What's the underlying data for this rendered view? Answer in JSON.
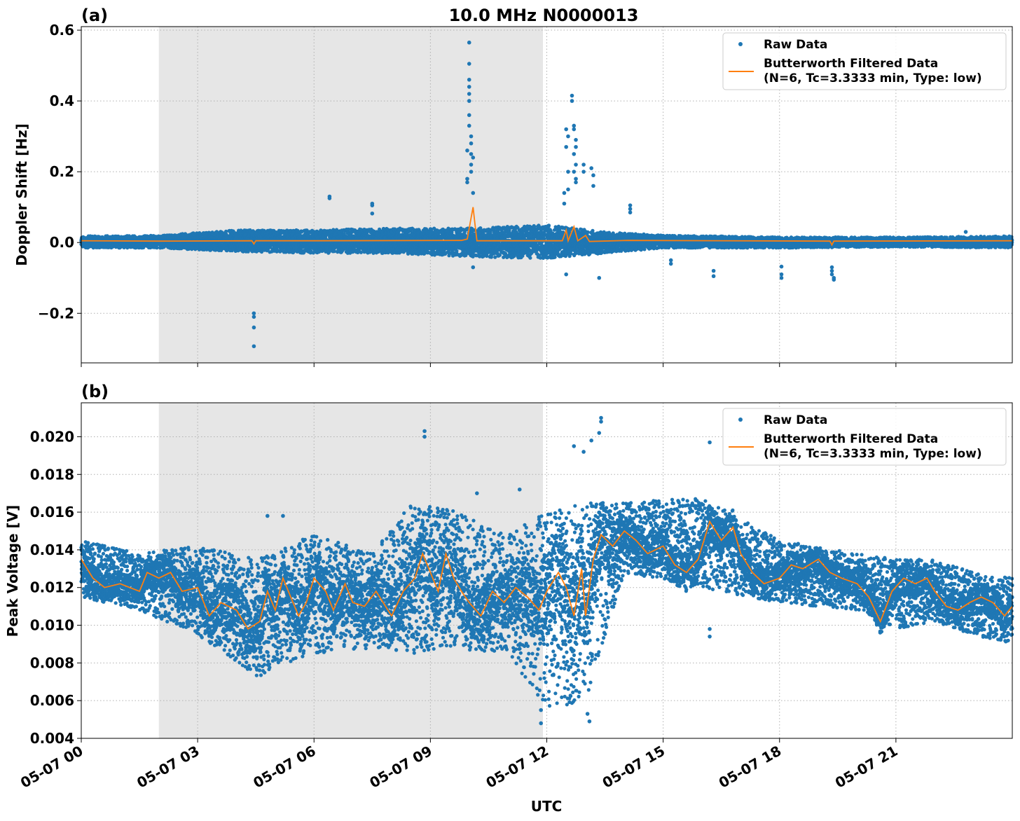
{
  "figure": {
    "title": "10.0 MHz N0000013",
    "xlabel": "UTC",
    "xticks": [
      "05-07 00",
      "05-07 03",
      "05-07 06",
      "05-07 09",
      "05-07 12",
      "05-07 15",
      "05-07 18",
      "05-07 21"
    ]
  },
  "chart_data": [
    {
      "type": "scatter",
      "panel_label": "(a)",
      "ylabel": "Doppler Shift [Hz]",
      "xlim_hours": [
        0,
        24
      ],
      "ylim": [
        -0.34,
        0.61
      ],
      "yticks": [
        -0.2,
        0.0,
        0.2,
        0.4,
        0.6
      ],
      "ytick_labels": [
        "−0.2",
        "0.0",
        "0.2",
        "0.4",
        "0.6"
      ],
      "shaded_interval_hours": [
        2.0,
        11.9
      ],
      "grid": true,
      "legend_position": "upper right",
      "series": [
        {
          "name": "Raw Data",
          "style": "markers",
          "color": "#1f77b4"
        },
        {
          "name": "Butterworth Filtered Data\n(N=6, Tc=3.3333 min, Type: low)",
          "style": "line",
          "color": "#ff7f0e"
        }
      ],
      "baseline_band": [
        {
          "x": 0,
          "lo": -0.015,
          "hi": 0.018
        },
        {
          "x": 2,
          "lo": -0.015,
          "hi": 0.02
        },
        {
          "x": 4,
          "lo": -0.025,
          "hi": 0.035
        },
        {
          "x": 6,
          "lo": -0.03,
          "hi": 0.035
        },
        {
          "x": 8,
          "lo": -0.03,
          "hi": 0.04
        },
        {
          "x": 10,
          "lo": -0.04,
          "hi": 0.04
        },
        {
          "x": 12,
          "lo": -0.045,
          "hi": 0.05
        },
        {
          "x": 13.5,
          "lo": -0.03,
          "hi": 0.03
        },
        {
          "x": 15,
          "lo": -0.015,
          "hi": 0.02
        },
        {
          "x": 18,
          "lo": -0.015,
          "hi": 0.015
        },
        {
          "x": 21,
          "lo": -0.012,
          "hi": 0.015
        },
        {
          "x": 24,
          "lo": -0.015,
          "hi": 0.018
        }
      ],
      "outliers": [
        {
          "x": 4.45,
          "y": -0.2
        },
        {
          "x": 4.45,
          "y": -0.21
        },
        {
          "x": 4.45,
          "y": -0.24
        },
        {
          "x": 4.45,
          "y": -0.293
        },
        {
          "x": 6.4,
          "y": 0.13
        },
        {
          "x": 6.4,
          "y": 0.125
        },
        {
          "x": 7.5,
          "y": 0.11
        },
        {
          "x": 7.5,
          "y": 0.105
        },
        {
          "x": 7.5,
          "y": 0.082
        },
        {
          "x": 10.0,
          "y": 0.565
        },
        {
          "x": 10.0,
          "y": 0.505
        },
        {
          "x": 10.0,
          "y": 0.46
        },
        {
          "x": 10.0,
          "y": 0.44
        },
        {
          "x": 10.0,
          "y": 0.42
        },
        {
          "x": 10.0,
          "y": 0.4
        },
        {
          "x": 10.0,
          "y": 0.36
        },
        {
          "x": 10.0,
          "y": 0.33
        },
        {
          "x": 10.05,
          "y": 0.3
        },
        {
          "x": 10.05,
          "y": 0.28
        },
        {
          "x": 10.05,
          "y": 0.25
        },
        {
          "x": 10.05,
          "y": 0.22
        },
        {
          "x": 10.05,
          "y": 0.2
        },
        {
          "x": 9.95,
          "y": 0.18
        },
        {
          "x": 9.95,
          "y": 0.17
        },
        {
          "x": 9.95,
          "y": 0.26
        },
        {
          "x": 10.1,
          "y": 0.24
        },
        {
          "x": 10.1,
          "y": 0.14
        },
        {
          "x": 10.1,
          "y": -0.07
        },
        {
          "x": 12.65,
          "y": 0.415
        },
        {
          "x": 12.65,
          "y": 0.4
        },
        {
          "x": 12.7,
          "y": 0.33
        },
        {
          "x": 12.7,
          "y": 0.32
        },
        {
          "x": 12.75,
          "y": 0.29
        },
        {
          "x": 12.75,
          "y": 0.27
        },
        {
          "x": 12.7,
          "y": 0.25
        },
        {
          "x": 12.75,
          "y": 0.22
        },
        {
          "x": 12.7,
          "y": 0.2
        },
        {
          "x": 12.75,
          "y": 0.18
        },
        {
          "x": 12.75,
          "y": 0.17
        },
        {
          "x": 12.5,
          "y": 0.32
        },
        {
          "x": 12.55,
          "y": 0.3
        },
        {
          "x": 12.5,
          "y": 0.27
        },
        {
          "x": 12.55,
          "y": 0.2
        },
        {
          "x": 12.55,
          "y": 0.15
        },
        {
          "x": 12.45,
          "y": 0.14
        },
        {
          "x": 12.45,
          "y": 0.11
        },
        {
          "x": 12.95,
          "y": 0.22
        },
        {
          "x": 12.95,
          "y": 0.2
        },
        {
          "x": 13.15,
          "y": 0.21
        },
        {
          "x": 13.2,
          "y": 0.19
        },
        {
          "x": 13.2,
          "y": 0.16
        },
        {
          "x": 12.5,
          "y": -0.09
        },
        {
          "x": 13.35,
          "y": -0.1
        },
        {
          "x": 14.15,
          "y": 0.105
        },
        {
          "x": 14.15,
          "y": 0.095
        },
        {
          "x": 14.15,
          "y": 0.085
        },
        {
          "x": 15.2,
          "y": -0.05
        },
        {
          "x": 15.2,
          "y": -0.06
        },
        {
          "x": 16.3,
          "y": -0.08
        },
        {
          "x": 16.3,
          "y": -0.095
        },
        {
          "x": 18.05,
          "y": -0.068
        },
        {
          "x": 18.05,
          "y": -0.09
        },
        {
          "x": 18.05,
          "y": -0.1
        },
        {
          "x": 19.35,
          "y": -0.07
        },
        {
          "x": 19.35,
          "y": -0.08
        },
        {
          "x": 19.35,
          "y": -0.09
        },
        {
          "x": 19.4,
          "y": -0.1
        },
        {
          "x": 19.4,
          "y": -0.105
        },
        {
          "x": 22.8,
          "y": 0.03
        }
      ],
      "filtered_line": [
        {
          "x": 0,
          "y": 0.005
        },
        {
          "x": 2,
          "y": 0.004
        },
        {
          "x": 4.4,
          "y": 0.005
        },
        {
          "x": 4.45,
          "y": -0.004
        },
        {
          "x": 4.5,
          "y": 0.005
        },
        {
          "x": 6.0,
          "y": 0.005
        },
        {
          "x": 9.8,
          "y": 0.006
        },
        {
          "x": 9.95,
          "y": 0.01
        },
        {
          "x": 10.05,
          "y": 0.07
        },
        {
          "x": 10.1,
          "y": 0.1
        },
        {
          "x": 10.15,
          "y": 0.05
        },
        {
          "x": 10.2,
          "y": 0.005
        },
        {
          "x": 12.4,
          "y": 0.005
        },
        {
          "x": 12.5,
          "y": 0.035
        },
        {
          "x": 12.55,
          "y": 0.005
        },
        {
          "x": 12.7,
          "y": 0.045
        },
        {
          "x": 12.8,
          "y": 0.005
        },
        {
          "x": 13.0,
          "y": 0.02
        },
        {
          "x": 13.1,
          "y": 0.003
        },
        {
          "x": 14.1,
          "y": 0.006
        },
        {
          "x": 19.3,
          "y": 0.004
        },
        {
          "x": 19.35,
          "y": -0.007
        },
        {
          "x": 19.4,
          "y": 0.004
        },
        {
          "x": 24,
          "y": 0.005
        }
      ]
    },
    {
      "type": "scatter",
      "panel_label": "(b)",
      "ylabel": "Peak Voltage [V]",
      "xlim_hours": [
        0,
        24
      ],
      "ylim": [
        0.004,
        0.0218
      ],
      "yticks": [
        0.004,
        0.006,
        0.008,
        0.01,
        0.012,
        0.014,
        0.016,
        0.018,
        0.02
      ],
      "ytick_labels": [
        "0.004",
        "0.006",
        "0.008",
        "0.010",
        "0.012",
        "0.014",
        "0.016",
        "0.018",
        "0.020"
      ],
      "shaded_interval_hours": [
        2.0,
        11.9
      ],
      "grid": true,
      "legend_position": "upper right",
      "series": [
        {
          "name": "Raw Data",
          "style": "markers",
          "color": "#1f77b4"
        },
        {
          "name": "Butterworth Filtered Data\n(N=6, Tc=3.3333 min, Type: low)",
          "style": "line",
          "color": "#ff7f0e"
        }
      ],
      "filtered_line": [
        {
          "x": 0,
          "y": 0.0135
        },
        {
          "x": 0.3,
          "y": 0.0125
        },
        {
          "x": 0.6,
          "y": 0.012
        },
        {
          "x": 1.0,
          "y": 0.0122
        },
        {
          "x": 1.5,
          "y": 0.0118
        },
        {
          "x": 1.7,
          "y": 0.0128
        },
        {
          "x": 2.0,
          "y": 0.0125
        },
        {
          "x": 2.3,
          "y": 0.0128
        },
        {
          "x": 2.6,
          "y": 0.0118
        },
        {
          "x": 3.0,
          "y": 0.012
        },
        {
          "x": 3.3,
          "y": 0.0105
        },
        {
          "x": 3.6,
          "y": 0.0112
        },
        {
          "x": 4.0,
          "y": 0.0108
        },
        {
          "x": 4.3,
          "y": 0.0098
        },
        {
          "x": 4.6,
          "y": 0.0102
        },
        {
          "x": 4.8,
          "y": 0.0118
        },
        {
          "x": 5.0,
          "y": 0.0108
        },
        {
          "x": 5.2,
          "y": 0.0125
        },
        {
          "x": 5.4,
          "y": 0.0115
        },
        {
          "x": 5.6,
          "y": 0.0105
        },
        {
          "x": 5.8,
          "y": 0.0112
        },
        {
          "x": 6.0,
          "y": 0.0125
        },
        {
          "x": 6.3,
          "y": 0.0118
        },
        {
          "x": 6.5,
          "y": 0.0108
        },
        {
          "x": 6.8,
          "y": 0.0122
        },
        {
          "x": 7.0,
          "y": 0.0112
        },
        {
          "x": 7.3,
          "y": 0.011
        },
        {
          "x": 7.6,
          "y": 0.0118
        },
        {
          "x": 8.0,
          "y": 0.0105
        },
        {
          "x": 8.3,
          "y": 0.0118
        },
        {
          "x": 8.6,
          "y": 0.0125
        },
        {
          "x": 8.8,
          "y": 0.0138
        },
        {
          "x": 9.0,
          "y": 0.0128
        },
        {
          "x": 9.2,
          "y": 0.0118
        },
        {
          "x": 9.4,
          "y": 0.0138
        },
        {
          "x": 9.6,
          "y": 0.0125
        },
        {
          "x": 9.8,
          "y": 0.0118
        },
        {
          "x": 10.0,
          "y": 0.0112
        },
        {
          "x": 10.3,
          "y": 0.0105
        },
        {
          "x": 10.6,
          "y": 0.0118
        },
        {
          "x": 10.9,
          "y": 0.0112
        },
        {
          "x": 11.2,
          "y": 0.012
        },
        {
          "x": 11.5,
          "y": 0.0115
        },
        {
          "x": 11.8,
          "y": 0.0108
        },
        {
          "x": 12.0,
          "y": 0.0118
        },
        {
          "x": 12.3,
          "y": 0.0128
        },
        {
          "x": 12.5,
          "y": 0.012
        },
        {
          "x": 12.7,
          "y": 0.0105
        },
        {
          "x": 12.9,
          "y": 0.013
        },
        {
          "x": 13.0,
          "y": 0.0105
        },
        {
          "x": 13.2,
          "y": 0.0135
        },
        {
          "x": 13.4,
          "y": 0.0148
        },
        {
          "x": 13.7,
          "y": 0.0142
        },
        {
          "x": 14.0,
          "y": 0.015
        },
        {
          "x": 14.3,
          "y": 0.0145
        },
        {
          "x": 14.6,
          "y": 0.0138
        },
        {
          "x": 15.0,
          "y": 0.0142
        },
        {
          "x": 15.3,
          "y": 0.0132
        },
        {
          "x": 15.6,
          "y": 0.0128
        },
        {
          "x": 15.9,
          "y": 0.0135
        },
        {
          "x": 16.2,
          "y": 0.0155
        },
        {
          "x": 16.5,
          "y": 0.0145
        },
        {
          "x": 16.8,
          "y": 0.0152
        },
        {
          "x": 17.0,
          "y": 0.0138
        },
        {
          "x": 17.3,
          "y": 0.0128
        },
        {
          "x": 17.6,
          "y": 0.0122
        },
        {
          "x": 18.0,
          "y": 0.0125
        },
        {
          "x": 18.3,
          "y": 0.0132
        },
        {
          "x": 18.6,
          "y": 0.013
        },
        {
          "x": 19.0,
          "y": 0.0135
        },
        {
          "x": 19.3,
          "y": 0.0128
        },
        {
          "x": 19.6,
          "y": 0.0125
        },
        {
          "x": 20.0,
          "y": 0.0122
        },
        {
          "x": 20.3,
          "y": 0.0115
        },
        {
          "x": 20.6,
          "y": 0.0102
        },
        {
          "x": 20.9,
          "y": 0.0118
        },
        {
          "x": 21.2,
          "y": 0.0125
        },
        {
          "x": 21.5,
          "y": 0.0122
        },
        {
          "x": 21.8,
          "y": 0.0125
        },
        {
          "x": 22.0,
          "y": 0.0118
        },
        {
          "x": 22.3,
          "y": 0.011
        },
        {
          "x": 22.6,
          "y": 0.0108
        },
        {
          "x": 22.9,
          "y": 0.0112
        },
        {
          "x": 23.2,
          "y": 0.0115
        },
        {
          "x": 23.5,
          "y": 0.0112
        },
        {
          "x": 23.8,
          "y": 0.0105
        },
        {
          "x": 24.0,
          "y": 0.011
        }
      ],
      "spread_envelope": [
        {
          "x": 0,
          "lo": 0.0115,
          "hi": 0.0145
        },
        {
          "x": 1.5,
          "lo": 0.0108,
          "hi": 0.0138
        },
        {
          "x": 3.0,
          "lo": 0.0095,
          "hi": 0.0142
        },
        {
          "x": 4.5,
          "lo": 0.0072,
          "hi": 0.0135
        },
        {
          "x": 6.0,
          "lo": 0.0085,
          "hi": 0.0148
        },
        {
          "x": 7.5,
          "lo": 0.0088,
          "hi": 0.0138
        },
        {
          "x": 8.5,
          "lo": 0.0085,
          "hi": 0.0165
        },
        {
          "x": 9.5,
          "lo": 0.0088,
          "hi": 0.0162
        },
        {
          "x": 11.0,
          "lo": 0.0085,
          "hi": 0.0148
        },
        {
          "x": 12.0,
          "lo": 0.0055,
          "hi": 0.016
        },
        {
          "x": 13.0,
          "lo": 0.006,
          "hi": 0.0165
        },
        {
          "x": 14.0,
          "lo": 0.0128,
          "hi": 0.0165
        },
        {
          "x": 16.0,
          "lo": 0.012,
          "hi": 0.0168
        },
        {
          "x": 18.0,
          "lo": 0.0112,
          "hi": 0.0145
        },
        {
          "x": 20.0,
          "lo": 0.0108,
          "hi": 0.0138
        },
        {
          "x": 21.0,
          "lo": 0.0098,
          "hi": 0.0135
        },
        {
          "x": 22.0,
          "lo": 0.0102,
          "hi": 0.0135
        },
        {
          "x": 23.0,
          "lo": 0.0095,
          "hi": 0.0128
        },
        {
          "x": 24.0,
          "lo": 0.009,
          "hi": 0.0125
        }
      ],
      "outliers": [
        {
          "x": 8.85,
          "y": 0.0203
        },
        {
          "x": 8.85,
          "y": 0.02
        },
        {
          "x": 11.85,
          "y": 0.0048
        },
        {
          "x": 11.85,
          "y": 0.0055
        },
        {
          "x": 12.7,
          "y": 0.0195
        },
        {
          "x": 12.95,
          "y": 0.0192
        },
        {
          "x": 13.1,
          "y": 0.0049
        },
        {
          "x": 13.05,
          "y": 0.0053
        },
        {
          "x": 13.4,
          "y": 0.021
        },
        {
          "x": 13.4,
          "y": 0.0208
        },
        {
          "x": 13.35,
          "y": 0.0202
        },
        {
          "x": 13.15,
          "y": 0.0198
        },
        {
          "x": 16.2,
          "y": 0.0197
        },
        {
          "x": 16.2,
          "y": 0.0094
        },
        {
          "x": 16.2,
          "y": 0.0098
        },
        {
          "x": 4.8,
          "y": 0.0158
        },
        {
          "x": 5.2,
          "y": 0.0158
        },
        {
          "x": 10.2,
          "y": 0.017
        },
        {
          "x": 11.3,
          "y": 0.0172
        }
      ]
    }
  ]
}
